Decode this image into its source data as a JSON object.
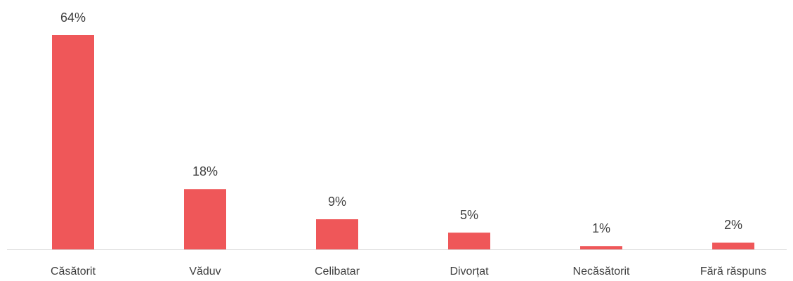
{
  "chart_data": {
    "type": "bar",
    "categories": [
      "Căsătorit",
      "Văduv",
      "Celibatar",
      "Divorțat",
      "Necăsătorit",
      "Fără răspuns"
    ],
    "values": [
      64,
      18,
      9,
      5,
      1,
      2
    ],
    "value_labels": [
      "64%",
      "18%",
      "9%",
      "5%",
      "1%",
      "2%"
    ],
    "color": "#ef5759"
  }
}
